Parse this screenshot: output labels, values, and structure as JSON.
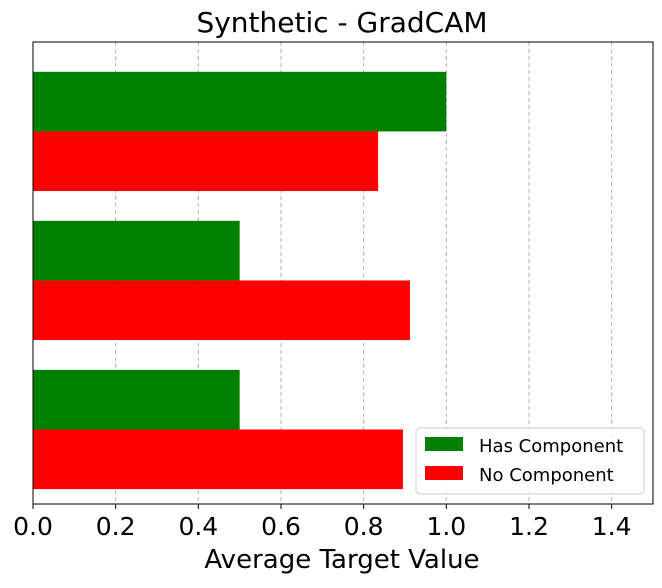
{
  "chart_data": {
    "type": "bar",
    "orientation": "horizontal",
    "title": "Synthetic - GradCAM",
    "xlabel": "Average Target Value",
    "ylabel": "",
    "xlim": [
      0.0,
      1.5
    ],
    "xticks": [
      0.0,
      0.2,
      0.4,
      0.6,
      0.8,
      1.0,
      1.2,
      1.4
    ],
    "xtick_labels": [
      "0.0",
      "0.2",
      "0.4",
      "0.6",
      "0.8",
      "1.0",
      "1.2",
      "1.4"
    ],
    "grid": "x-dashed",
    "legend_position": "lower-right",
    "categories": [
      "",
      "",
      ""
    ],
    "series": [
      {
        "name": "Has Component",
        "color": "#008000",
        "values": [
          1.0,
          0.5,
          0.5
        ]
      },
      {
        "name": "No Component",
        "color": "#ff0000",
        "values": [
          0.835,
          0.912,
          0.895
        ]
      }
    ]
  }
}
